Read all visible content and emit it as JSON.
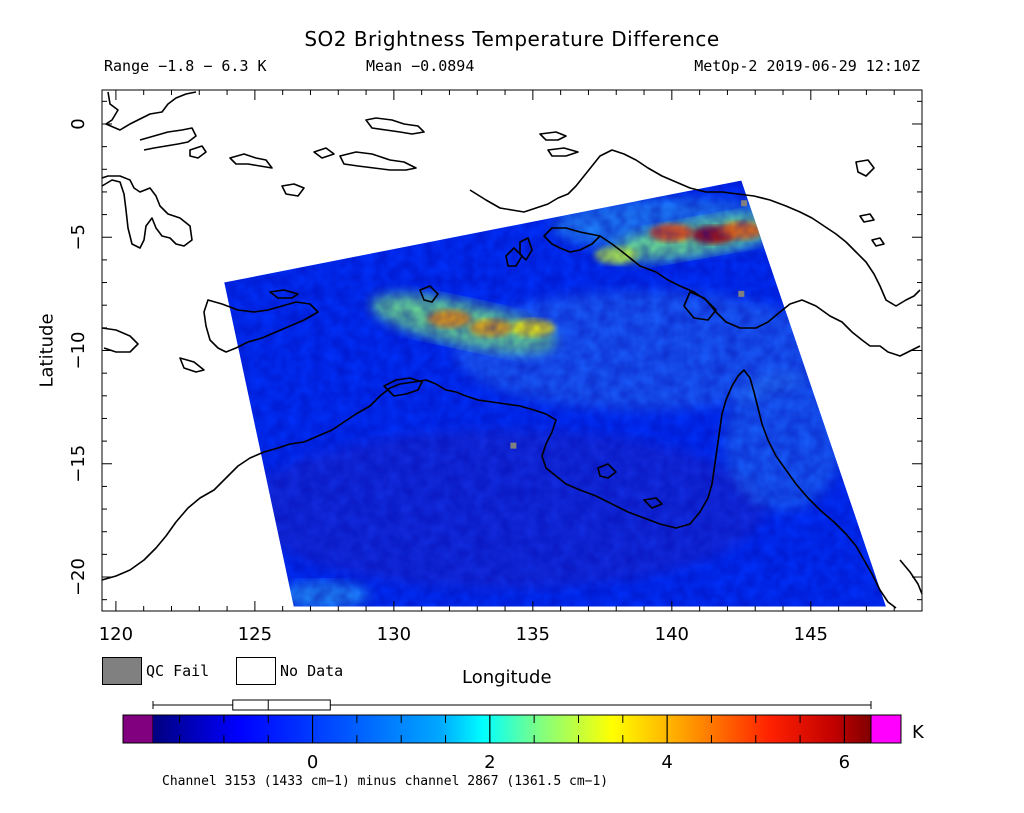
{
  "chart_data": {
    "type": "heatmap",
    "title": "SO2 Brightness Temperature Difference",
    "subtitle_range": "Range −1.8 − 6.3 K",
    "subtitle_mean": "Mean −0.0894",
    "subtitle_satellite": "MetOp-2 2019-06-29 12:10Z",
    "xlabel": "Longitude",
    "ylabel": "Latitude",
    "xlim": [
      119.5,
      149
    ],
    "ylim": [
      -21.5,
      1.5
    ],
    "x_ticks": [
      120,
      125,
      130,
      135,
      140,
      145
    ],
    "y_ticks": [
      0,
      -5,
      -10,
      -15,
      -20
    ],
    "x_tick_labels": [
      "120",
      "125",
      "130",
      "135",
      "140",
      "145"
    ],
    "y_tick_labels": [
      "0",
      "−5",
      "−10",
      "−15",
      "−20"
    ],
    "swath_corners": [
      [
        123.9,
        -7.0
      ],
      [
        142.5,
        -2.5
      ],
      [
        147.7,
        -21.3
      ],
      [
        126.4,
        -21.3
      ]
    ],
    "so2_plume": [
      {
        "lon": 132.0,
        "lat": -8.6,
        "value": 4.2
      },
      {
        "lon": 133.5,
        "lat": -9.0,
        "value": 4.0
      },
      {
        "lon": 135.0,
        "lat": -9.0,
        "value": 3.5
      },
      {
        "lon": 141.5,
        "lat": -4.9,
        "value": 6.0
      },
      {
        "lon": 140.0,
        "lat": -4.8,
        "value": 4.8
      },
      {
        "lon": 142.5,
        "lat": -4.7,
        "value": 4.6
      },
      {
        "lon": 138.0,
        "lat": -5.8,
        "value": 3.0
      }
    ],
    "background_value": -0.1,
    "qc_fail_points": [
      [
        134.3,
        -14.2
      ],
      [
        142.5,
        -7.5
      ],
      [
        142.6,
        -3.5
      ]
    ],
    "legend": {
      "qc_fail_label": "QC Fail",
      "no_data_label": "No Data",
      "qc_fail_color": "#808080",
      "no_data_color": "#ffffff"
    },
    "colorbar": {
      "range": [
        -1.8,
        6.3
      ],
      "unit": "K",
      "ticks": [
        0,
        2,
        4,
        6
      ],
      "tick_labels": [
        "0",
        "2",
        "4",
        "6"
      ],
      "under_color": "#800080",
      "over_color": "#ff00ff",
      "boxplot": {
        "min": -1.8,
        "q1": -0.9,
        "median": -0.5,
        "q3": 0.2,
        "max": 6.3
      }
    },
    "footnote": "Channel 3153 (1433 cm−1) minus channel 2867 (1361.5 cm−1)"
  }
}
